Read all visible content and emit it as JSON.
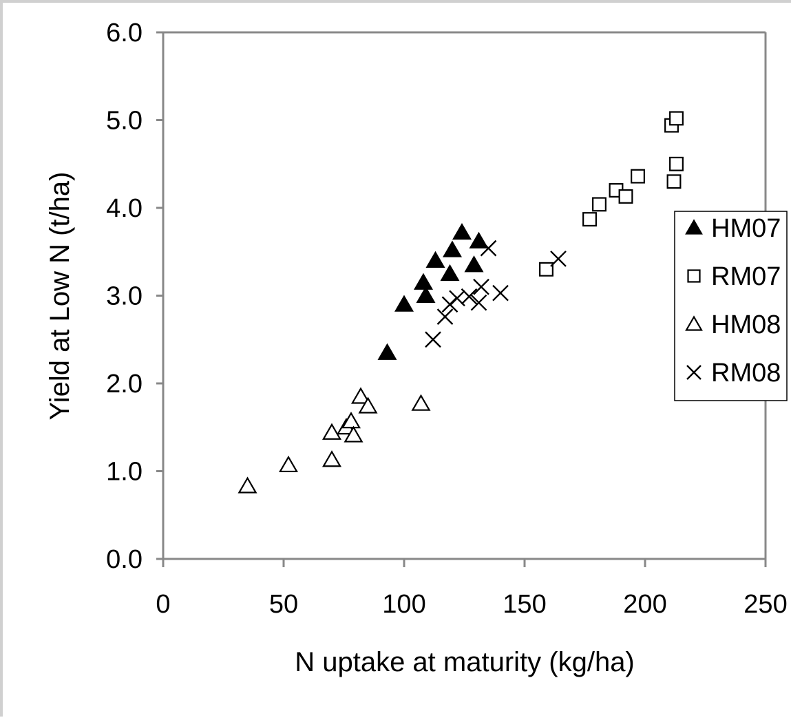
{
  "chart_data": {
    "type": "scatter",
    "title": "",
    "xlabel": "N uptake at maturity (kg/ha)",
    "ylabel": "Yield at Low N (t/ha)",
    "xlim": [
      0,
      250
    ],
    "ylim": [
      0,
      6
    ],
    "x_ticks": [
      "0",
      "50",
      "100",
      "150",
      "200",
      "250"
    ],
    "y_ticks": [
      "0.0",
      "1.0",
      "2.0",
      "3.0",
      "4.0",
      "5.0",
      "6.0"
    ],
    "grid": false,
    "legend_position": "right",
    "series": [
      {
        "name": "HM07",
        "marker": "triangle-filled",
        "color": "#000000",
        "points": [
          [
            93,
            2.35
          ],
          [
            100,
            2.9
          ],
          [
            108,
            3.15
          ],
          [
            109,
            3.0
          ],
          [
            113,
            3.4
          ],
          [
            119,
            3.25
          ],
          [
            120,
            3.52
          ],
          [
            124,
            3.72
          ],
          [
            129,
            3.35
          ],
          [
            131,
            3.62
          ]
        ]
      },
      {
        "name": "RM07",
        "marker": "square-open",
        "color": "#000000",
        "points": [
          [
            159,
            3.3
          ],
          [
            177,
            3.87
          ],
          [
            181,
            4.04
          ],
          [
            188,
            4.2
          ],
          [
            192,
            4.13
          ],
          [
            197,
            4.36
          ],
          [
            211,
            4.94
          ],
          [
            213,
            5.02
          ],
          [
            212,
            4.3
          ],
          [
            213,
            4.5
          ]
        ]
      },
      {
        "name": "HM08",
        "marker": "triangle-open",
        "color": "#000000",
        "points": [
          [
            35,
            0.83
          ],
          [
            52,
            1.07
          ],
          [
            70,
            1.13
          ],
          [
            70,
            1.44
          ],
          [
            76,
            1.5
          ],
          [
            78,
            1.57
          ],
          [
            79,
            1.41
          ],
          [
            82,
            1.85
          ],
          [
            85,
            1.74
          ],
          [
            107,
            1.77
          ]
        ]
      },
      {
        "name": "RM08",
        "marker": "x",
        "color": "#000000",
        "points": [
          [
            112,
            2.5
          ],
          [
            117,
            2.76
          ],
          [
            119,
            2.9
          ],
          [
            122,
            2.97
          ],
          [
            127,
            2.99
          ],
          [
            131,
            2.92
          ],
          [
            132,
            3.1
          ],
          [
            135,
            3.54
          ],
          [
            140,
            3.03
          ],
          [
            164,
            3.42
          ]
        ]
      }
    ]
  }
}
